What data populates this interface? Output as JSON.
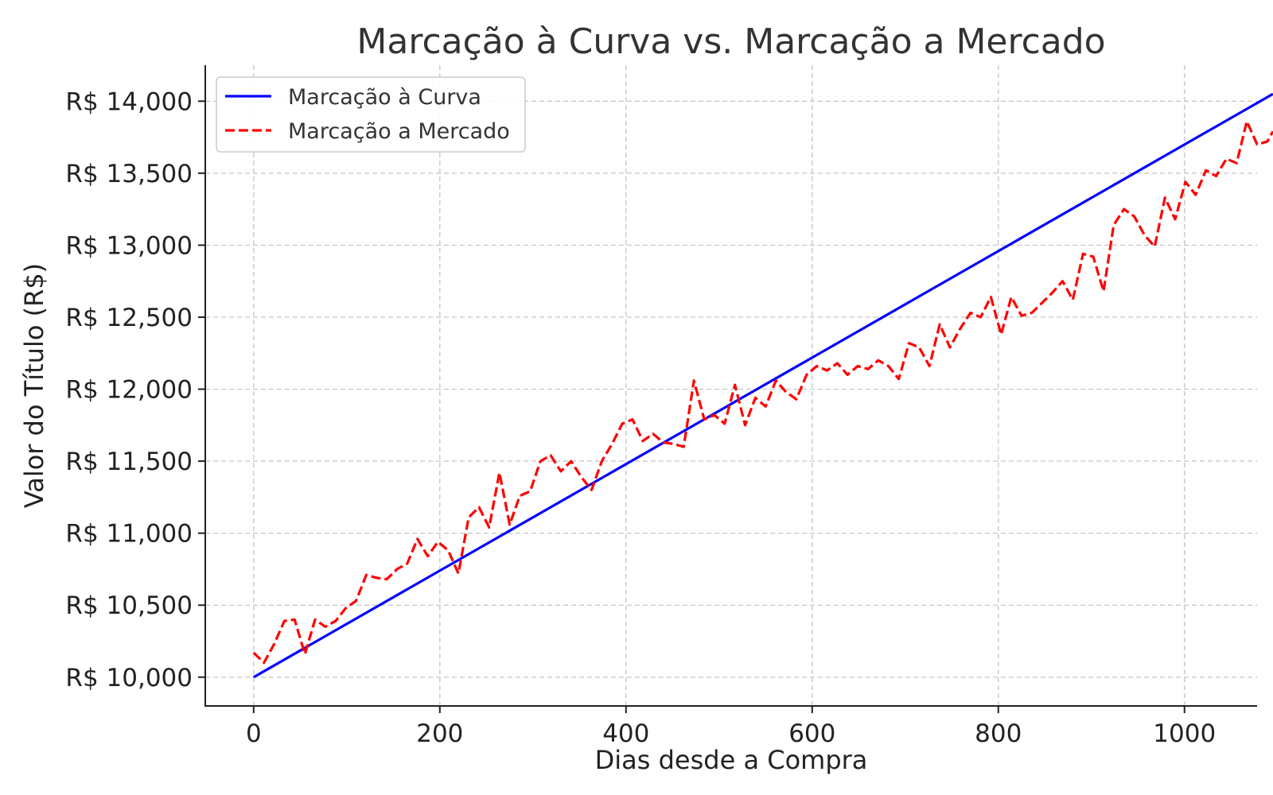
{
  "chart_data": {
    "type": "line",
    "title": "Marcação à Curva vs. Marcação a Mercado",
    "xlabel": "Dias desde a Compra",
    "ylabel": "Valor do Título (R$)",
    "xlim": [
      -52,
      1078
    ],
    "ylim": [
      9800,
      14250
    ],
    "x_ticks": [
      0,
      200,
      400,
      600,
      800,
      1000
    ],
    "x_tick_labels": [
      "0",
      "200",
      "400",
      "600",
      "800",
      "1000"
    ],
    "y_ticks": [
      10000,
      10500,
      11000,
      11500,
      12000,
      12500,
      13000,
      13500,
      14000
    ],
    "y_tick_labels": [
      "R$ 10,000",
      "R$ 10,500",
      "R$ 11,000",
      "R$ 11,500",
      "R$ 12,000",
      "R$ 12,500",
      "R$ 13,000",
      "R$ 13,500",
      "R$ 14,000"
    ],
    "grid": true,
    "legend_position": "top-left",
    "series": [
      {
        "name": "Marcação à Curva",
        "color": "#0000ff",
        "style": "solid",
        "x": [
          0,
          1095
        ],
        "y": [
          10000,
          14050
        ]
      },
      {
        "name": "Marcação a Mercado",
        "color": "#ff0000",
        "style": "dashed",
        "x": [
          0,
          11,
          22,
          33,
          44,
          55,
          66,
          77,
          88,
          99,
          110,
          121,
          132,
          143,
          154,
          165,
          176,
          187,
          198,
          209,
          220,
          231,
          242,
          253,
          264,
          275,
          286,
          297,
          308,
          319,
          330,
          341,
          352,
          363,
          374,
          385,
          396,
          407,
          418,
          429,
          440,
          451,
          462,
          473,
          484,
          495,
          506,
          517,
          528,
          539,
          550,
          561,
          572,
          583,
          594,
          605,
          616,
          627,
          638,
          649,
          660,
          671,
          682,
          693,
          704,
          715,
          726,
          737,
          748,
          759,
          770,
          781,
          792,
          803,
          814,
          825,
          836,
          847,
          858,
          869,
          880,
          891,
          902,
          913,
          924,
          935,
          946,
          957,
          968,
          979,
          990,
          1001,
          1012,
          1023,
          1034,
          1045,
          1056,
          1067,
          1078,
          1089,
          1095
        ],
        "y": [
          10170,
          10100,
          10230,
          10390,
          10400,
          10160,
          10400,
          10350,
          10390,
          10480,
          10530,
          10710,
          10690,
          10680,
          10750,
          10790,
          10960,
          10840,
          10940,
          10880,
          10720,
          11110,
          11180,
          11040,
          11420,
          11060,
          11260,
          11290,
          11500,
          11540,
          11430,
          11500,
          11390,
          11300,
          11500,
          11620,
          11760,
          11790,
          11640,
          11690,
          11630,
          11620,
          11600,
          12060,
          11790,
          11820,
          11760,
          12030,
          11750,
          11940,
          11880,
          12060,
          11980,
          11930,
          12100,
          12160,
          12130,
          12180,
          12100,
          12160,
          12140,
          12200,
          12160,
          12070,
          12320,
          12290,
          12160,
          12450,
          12290,
          12420,
          12530,
          12500,
          12640,
          12380,
          12640,
          12510,
          12530,
          12600,
          12670,
          12750,
          12620,
          12940,
          12920,
          12680,
          13140,
          13250,
          13200,
          13070,
          12990,
          13330,
          13180,
          13440,
          13350,
          13520,
          13480,
          13600,
          13570,
          13860,
          13700,
          13720,
          13790
        ]
      }
    ]
  }
}
